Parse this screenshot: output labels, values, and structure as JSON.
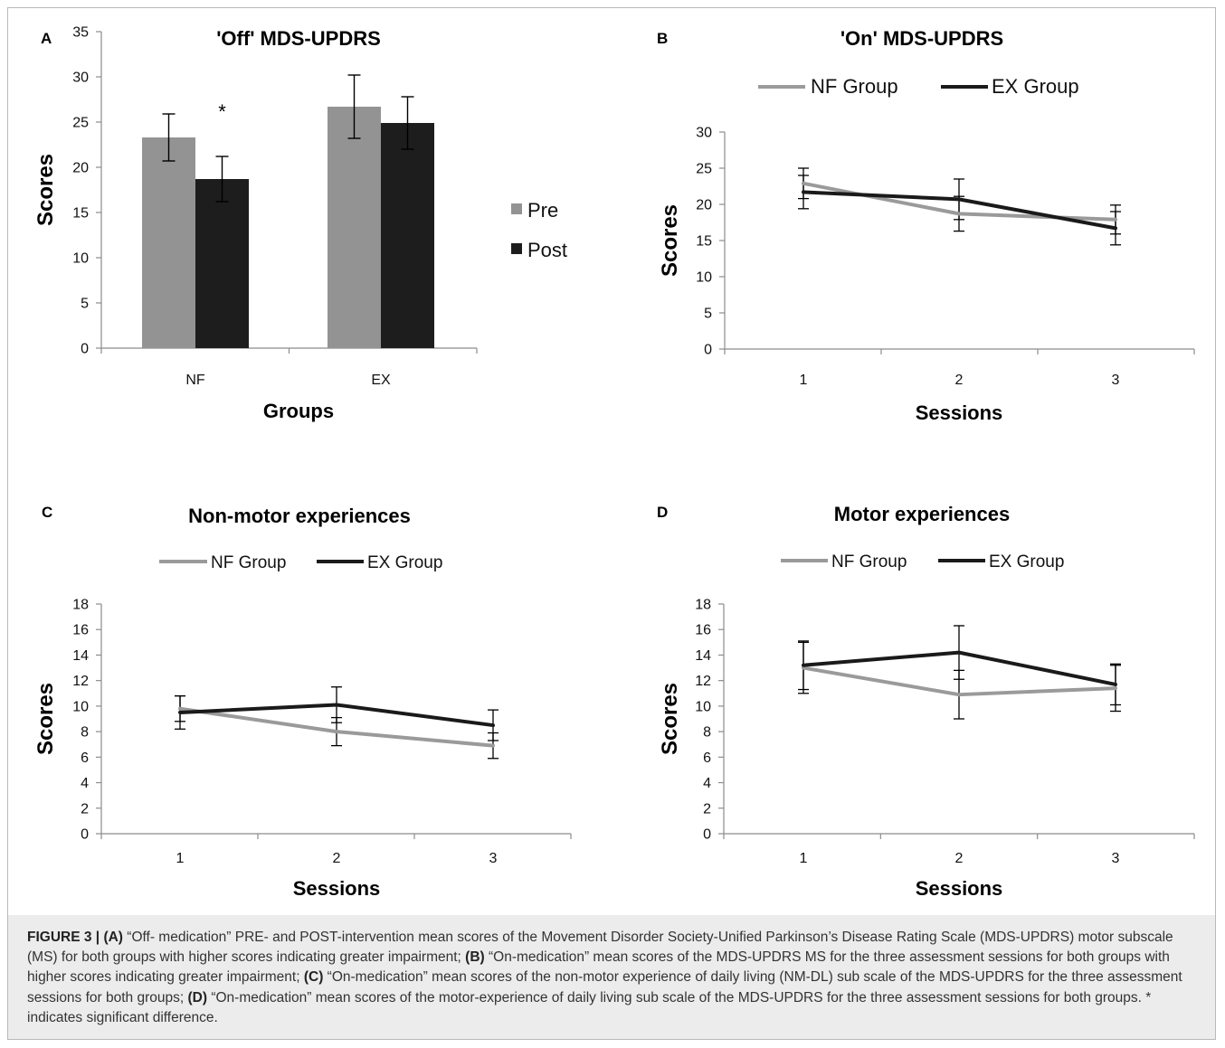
{
  "caption": {
    "label": "FIGURE 3 |",
    "parts": [
      {
        "b": "(A)",
        "t": " “Off- medication” PRE- and POST-intervention mean scores of the Movement Disorder Society-Unified Parkinson’s Disease Rating Scale (MDS-UPDRS) motor subscale (MS) for both groups with higher scores indicating greater impairment; "
      },
      {
        "b": "(B)",
        "t": " “On-medication” mean scores of the MDS-UPDRS MS for the three assessment sessions for both groups with higher scores indicating greater impairment; "
      },
      {
        "b": "(C)",
        "t": " “On-medication” mean scores of the non-motor experience of daily living (NM-DL) sub scale of the MDS-UPDRS for the three assessment sessions for both groups; "
      },
      {
        "b": "(D)",
        "t": " “On-medication” mean scores of the motor-experience of daily living sub scale of the MDS-UPDRS for the three assessment sessions for both groups. * indicates significant difference."
      }
    ]
  },
  "colors": {
    "pre": "#939393",
    "post": "#1d1d1d",
    "nf": "#9a9a9a",
    "ex": "#1a1a1a",
    "axis": "#8c8c8c",
    "caption_bg": "#ececec"
  },
  "chart_data": [
    {
      "id": "A",
      "panel_letter": "A",
      "type": "bar",
      "title": "'Off' MDS-UPDRS",
      "xlabel": "Groups",
      "ylabel": "Scores",
      "ylim": [
        0,
        35
      ],
      "yticks": [
        0,
        5,
        10,
        15,
        20,
        25,
        30,
        35
      ],
      "categories": [
        "NF",
        "EX"
      ],
      "series": [
        {
          "name": "Pre",
          "values": [
            23.3,
            26.7
          ],
          "err": [
            2.6,
            3.5
          ]
        },
        {
          "name": "Post",
          "values": [
            18.7,
            24.9
          ],
          "err": [
            2.5,
            2.9
          ]
        }
      ],
      "annotations": [
        {
          "text": "*",
          "category": "NF",
          "series": "Post"
        }
      ],
      "legend": "right",
      "grid": false
    },
    {
      "id": "B",
      "panel_letter": "B",
      "type": "line",
      "title": "'On' MDS-UPDRS",
      "xlabel": "Sessions",
      "ylabel": "Scores",
      "ylim": [
        0,
        30
      ],
      "yticks": [
        0,
        5,
        10,
        15,
        20,
        25,
        30
      ],
      "x": [
        "1",
        "2",
        "3"
      ],
      "series": [
        {
          "name": "NF Group",
          "values": [
            22.9,
            18.7,
            17.9
          ],
          "err": [
            2.1,
            2.4,
            2.0
          ]
        },
        {
          "name": "EX Group",
          "values": [
            21.7,
            20.7,
            16.7
          ],
          "err": [
            2.3,
            2.8,
            2.3
          ]
        }
      ],
      "legend": "top",
      "grid": false
    },
    {
      "id": "C",
      "panel_letter": "C",
      "type": "line",
      "title": "Non-motor experiences",
      "xlabel": "Sessions",
      "ylabel": "Scores",
      "ylim": [
        0,
        18
      ],
      "yticks": [
        0,
        2,
        4,
        6,
        8,
        10,
        12,
        14,
        16,
        18
      ],
      "x": [
        "1",
        "2",
        "3"
      ],
      "series": [
        {
          "name": "NF Group",
          "values": [
            9.8,
            8.0,
            6.9
          ],
          "err": [
            1.0,
            1.1,
            1.0
          ]
        },
        {
          "name": "EX Group",
          "values": [
            9.5,
            10.1,
            8.5
          ],
          "err": [
            1.3,
            1.4,
            1.2
          ]
        }
      ],
      "legend": "top",
      "grid": false
    },
    {
      "id": "D",
      "panel_letter": "D",
      "type": "line",
      "title": "Motor experiences",
      "xlabel": "Sessions",
      "ylabel": "Scores",
      "ylim": [
        0,
        18
      ],
      "yticks": [
        0,
        2,
        4,
        6,
        8,
        10,
        12,
        14,
        16,
        18
      ],
      "x": [
        "1",
        "2",
        "3"
      ],
      "series": [
        {
          "name": "NF Group",
          "values": [
            13.0,
            10.9,
            11.4
          ],
          "err": [
            2.0,
            1.9,
            1.8
          ]
        },
        {
          "name": "EX Group",
          "values": [
            13.2,
            14.2,
            11.7
          ],
          "err": [
            1.9,
            2.1,
            1.6
          ]
        }
      ],
      "legend": "top",
      "grid": false
    }
  ]
}
